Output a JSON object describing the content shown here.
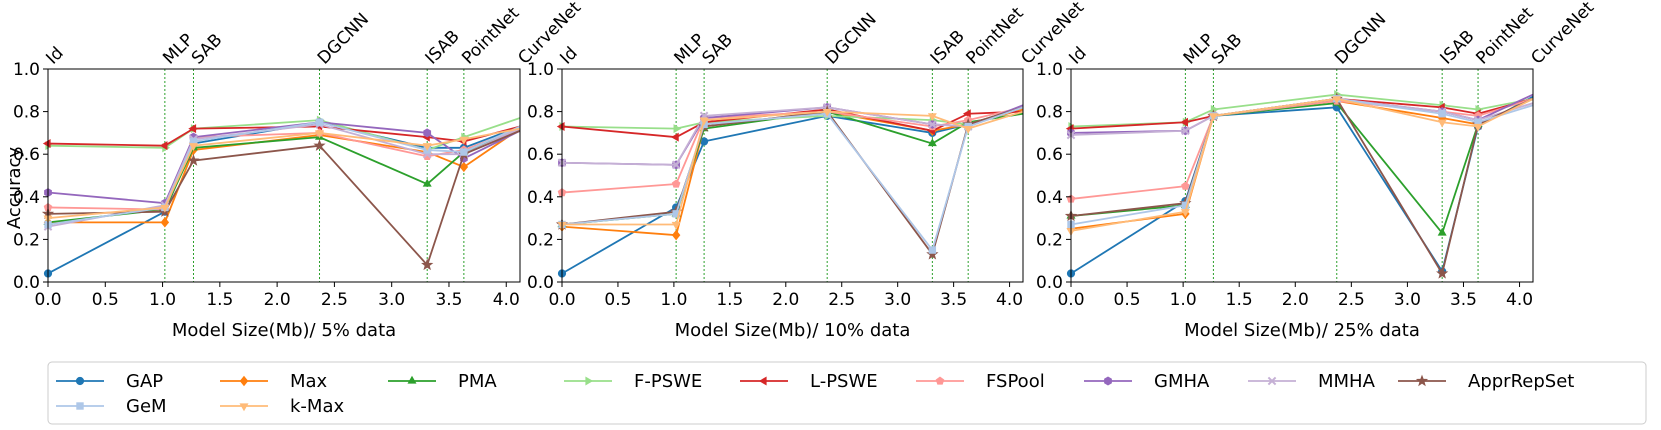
{
  "figure": {
    "ylabel": "Accuracy",
    "series_defs": [
      {
        "name": "GAP",
        "color": "#1f77b4",
        "marker": "o"
      },
      {
        "name": "Max",
        "color": "#ff7f0e",
        "marker": "D"
      },
      {
        "name": "PMA",
        "color": "#2ca02c",
        "marker": "^"
      },
      {
        "name": "F-PSWE",
        "color": "#98df8a",
        "marker": ">"
      },
      {
        "name": "L-PSWE",
        "color": "#d62728",
        "marker": "<"
      },
      {
        "name": "FSPool",
        "color": "#ff9896",
        "marker": "p"
      },
      {
        "name": "GMHA",
        "color": "#9467bd",
        "marker": "h"
      },
      {
        "name": "MMHA",
        "color": "#c5b0d5",
        "marker": "x"
      },
      {
        "name": "ApprRepSet",
        "color": "#8c564b",
        "marker": "*"
      },
      {
        "name": "GeM",
        "color": "#aec7e8",
        "marker": "s"
      },
      {
        "name": "k-Max",
        "color": "#ffbb78",
        "marker": "v"
      }
    ],
    "vlines": [
      {
        "label": "Id",
        "x": 0.0
      },
      {
        "label": "MLP",
        "x": 1.02
      },
      {
        "label": "SAB",
        "x": 1.27
      },
      {
        "label": "DGCNN",
        "x": 2.37
      },
      {
        "label": "ISAB",
        "x": 3.31
      },
      {
        "label": "PointNet",
        "x": 3.63
      },
      {
        "label": "CurveNet",
        "x": 4.12
      }
    ]
  },
  "chart_data": [
    {
      "type": "line",
      "xlabel": "Model Size(Mb)/ 5% data",
      "ylabel": "Accuracy",
      "xlim": [
        0.0,
        4.12
      ],
      "ylim": [
        0.0,
        1.0
      ],
      "xticks": [
        "0.0",
        "0.5",
        "1.0",
        "1.5",
        "2.0",
        "2.5",
        "3.0",
        "3.5",
        "4.0"
      ],
      "yticks": [
        "0.0",
        "0.2",
        "0.4",
        "0.6",
        "0.8",
        "1.0"
      ],
      "x": [
        0.0,
        1.02,
        1.27,
        2.37,
        3.31,
        3.63,
        4.12
      ],
      "series": [
        {
          "name": "GAP",
          "values": [
            0.04,
            0.33,
            0.65,
            0.75,
            0.63,
            0.63,
            0.73
          ]
        },
        {
          "name": "Max",
          "values": [
            0.28,
            0.28,
            0.62,
            0.69,
            0.61,
            0.54,
            0.72
          ]
        },
        {
          "name": "PMA",
          "values": [
            0.28,
            0.34,
            0.63,
            0.68,
            0.46,
            0.61,
            0.72
          ]
        },
        {
          "name": "F-PSWE",
          "values": [
            0.64,
            0.63,
            0.72,
            0.76,
            0.62,
            0.68,
            0.77
          ]
        },
        {
          "name": "L-PSWE",
          "values": [
            0.65,
            0.64,
            0.72,
            0.73,
            0.68,
            0.66,
            0.73
          ]
        },
        {
          "name": "FSPool",
          "values": [
            0.35,
            0.34,
            0.68,
            0.7,
            0.59,
            0.62,
            0.72
          ]
        },
        {
          "name": "GMHA",
          "values": [
            0.42,
            0.37,
            0.68,
            0.75,
            0.7,
            0.58,
            0.71
          ]
        },
        {
          "name": "MMHA",
          "values": [
            0.26,
            0.36,
            0.67,
            0.74,
            0.6,
            0.6,
            0.72
          ]
        },
        {
          "name": "ApprRepSet",
          "values": [
            0.32,
            0.33,
            0.57,
            0.64,
            0.08,
            0.6,
            0.71
          ]
        },
        {
          "name": "GeM",
          "values": [
            0.27,
            0.35,
            0.66,
            0.75,
            0.62,
            0.61,
            0.73
          ]
        },
        {
          "name": "k-Max",
          "values": [
            0.3,
            0.35,
            0.64,
            0.7,
            0.64,
            0.67,
            0.72
          ]
        }
      ]
    },
    {
      "type": "line",
      "xlabel": "Model Size(Mb)/ 10% data",
      "ylabel": "Accuracy",
      "xlim": [
        0.0,
        4.12
      ],
      "ylim": [
        0.0,
        1.0
      ],
      "xticks": [
        "0.0",
        "0.5",
        "1.0",
        "1.5",
        "2.0",
        "2.5",
        "3.0",
        "3.5",
        "4.0"
      ],
      "yticks": [
        "0.0",
        "0.2",
        "0.4",
        "0.6",
        "0.8",
        "1.0"
      ],
      "x": [
        0.0,
        1.02,
        1.27,
        2.37,
        3.31,
        3.63,
        4.12
      ],
      "series": [
        {
          "name": "GAP",
          "values": [
            0.04,
            0.35,
            0.66,
            0.78,
            0.7,
            0.74,
            0.82
          ]
        },
        {
          "name": "Max",
          "values": [
            0.26,
            0.22,
            0.73,
            0.8,
            0.71,
            0.74,
            0.81
          ]
        },
        {
          "name": "PMA",
          "values": [
            0.27,
            0.32,
            0.72,
            0.8,
            0.65,
            0.75,
            0.79
          ]
        },
        {
          "name": "F-PSWE",
          "values": [
            0.73,
            0.72,
            0.75,
            0.78,
            0.76,
            0.74,
            0.82
          ]
        },
        {
          "name": "L-PSWE",
          "values": [
            0.73,
            0.68,
            0.75,
            0.81,
            0.71,
            0.79,
            0.8
          ]
        },
        {
          "name": "FSPool",
          "values": [
            0.42,
            0.46,
            0.77,
            0.8,
            0.73,
            0.76,
            0.82
          ]
        },
        {
          "name": "GMHA",
          "values": [
            0.56,
            0.55,
            0.77,
            0.82,
            0.74,
            0.73,
            0.83
          ]
        },
        {
          "name": "MMHA",
          "values": [
            0.56,
            0.55,
            0.78,
            0.82,
            0.74,
            0.73,
            0.82
          ]
        },
        {
          "name": "ApprRepSet",
          "values": [
            0.27,
            0.33,
            0.73,
            0.8,
            0.13,
            0.74,
            0.82
          ]
        },
        {
          "name": "GeM",
          "values": [
            0.27,
            0.32,
            0.74,
            0.79,
            0.15,
            0.73,
            0.82
          ]
        },
        {
          "name": "k-Max",
          "values": [
            0.27,
            0.27,
            0.76,
            0.8,
            0.78,
            0.72,
            0.8
          ]
        }
      ]
    },
    {
      "type": "line",
      "xlabel": "Model Size(Mb)/ 25% data",
      "ylabel": "Accuracy",
      "xlim": [
        0.0,
        4.12
      ],
      "ylim": [
        0.0,
        1.0
      ],
      "xticks": [
        "0.0",
        "0.5",
        "1.0",
        "1.5",
        "2.0",
        "2.5",
        "3.0",
        "3.5",
        "4.0"
      ],
      "yticks": [
        "0.0",
        "0.2",
        "0.4",
        "0.6",
        "0.8",
        "1.0"
      ],
      "x": [
        0.0,
        1.02,
        1.27,
        2.37,
        3.31,
        3.63,
        4.12
      ],
      "series": [
        {
          "name": "GAP",
          "values": [
            0.04,
            0.38,
            0.78,
            0.82,
            0.05,
            0.73,
            0.87
          ]
        },
        {
          "name": "Max",
          "values": [
            0.25,
            0.32,
            0.78,
            0.85,
            0.77,
            0.74,
            0.86
          ]
        },
        {
          "name": "PMA",
          "values": [
            0.31,
            0.36,
            0.78,
            0.84,
            0.23,
            0.74,
            0.86
          ]
        },
        {
          "name": "F-PSWE",
          "values": [
            0.73,
            0.75,
            0.81,
            0.88,
            0.83,
            0.81,
            0.86
          ]
        },
        {
          "name": "L-PSWE",
          "values": [
            0.72,
            0.75,
            0.78,
            0.86,
            0.82,
            0.79,
            0.86
          ]
        },
        {
          "name": "FSPool",
          "values": [
            0.39,
            0.45,
            0.78,
            0.85,
            0.8,
            0.78,
            0.86
          ]
        },
        {
          "name": "GMHA",
          "values": [
            0.7,
            0.71,
            0.78,
            0.86,
            0.8,
            0.76,
            0.88
          ]
        },
        {
          "name": "MMHA",
          "values": [
            0.69,
            0.71,
            0.78,
            0.86,
            0.8,
            0.76,
            0.84
          ]
        },
        {
          "name": "ApprRepSet",
          "values": [
            0.31,
            0.37,
            0.78,
            0.86,
            0.04,
            0.74,
            0.86
          ]
        },
        {
          "name": "GeM",
          "values": [
            0.27,
            0.36,
            0.78,
            0.86,
            0.79,
            0.75,
            0.83
          ]
        },
        {
          "name": "k-Max",
          "values": [
            0.24,
            0.33,
            0.78,
            0.86,
            0.75,
            0.73,
            0.86
          ]
        }
      ]
    }
  ]
}
